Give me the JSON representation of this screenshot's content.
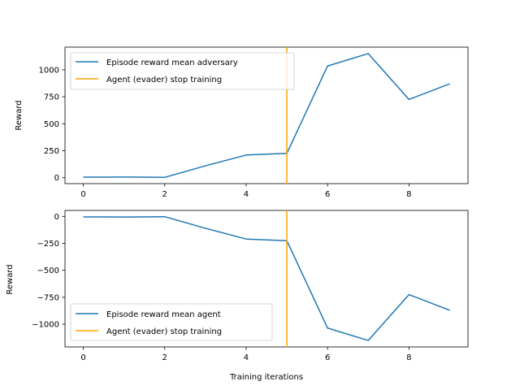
{
  "chart_data": [
    {
      "type": "line",
      "title": "",
      "xlabel": "",
      "ylabel": "Reward",
      "x": [
        0,
        1,
        2,
        3,
        4,
        5,
        6,
        7,
        8,
        9
      ],
      "series": [
        {
          "name": "Episode reward mean adversary",
          "color": "#1f77b4",
          "values": [
            5,
            6,
            3,
            110,
            210,
            225,
            1035,
            1150,
            725,
            870
          ]
        }
      ],
      "vline": {
        "x": 5,
        "name": "Agent (evader) stop training",
        "color": "#ffa500"
      },
      "xlim": [
        -0.45,
        9.45
      ],
      "ylim": [
        -55,
        1210
      ],
      "xticks": [
        0,
        2,
        4,
        6,
        8
      ],
      "yticks": [
        0,
        250,
        500,
        750,
        1000
      ],
      "legend": "upper-left",
      "grid": false
    },
    {
      "type": "line",
      "title": "",
      "xlabel": "Training iterations",
      "ylabel": "Reward",
      "x": [
        0,
        1,
        2,
        3,
        4,
        5,
        6,
        7,
        8,
        9
      ],
      "series": [
        {
          "name": "Episode reward mean agent",
          "color": "#1f77b4",
          "values": [
            -5,
            -6,
            -3,
            -110,
            -210,
            -225,
            -1035,
            -1150,
            -725,
            -870
          ]
        }
      ],
      "vline": {
        "x": 5,
        "name": "Agent (evader) stop training",
        "color": "#ffa500"
      },
      "xlim": [
        -0.45,
        9.45
      ],
      "ylim": [
        -1210,
        55
      ],
      "xticks": [
        0,
        2,
        4,
        6,
        8
      ],
      "yticks": [
        0,
        -250,
        -500,
        -750,
        -1000
      ],
      "legend": "lower-left",
      "grid": false
    }
  ]
}
